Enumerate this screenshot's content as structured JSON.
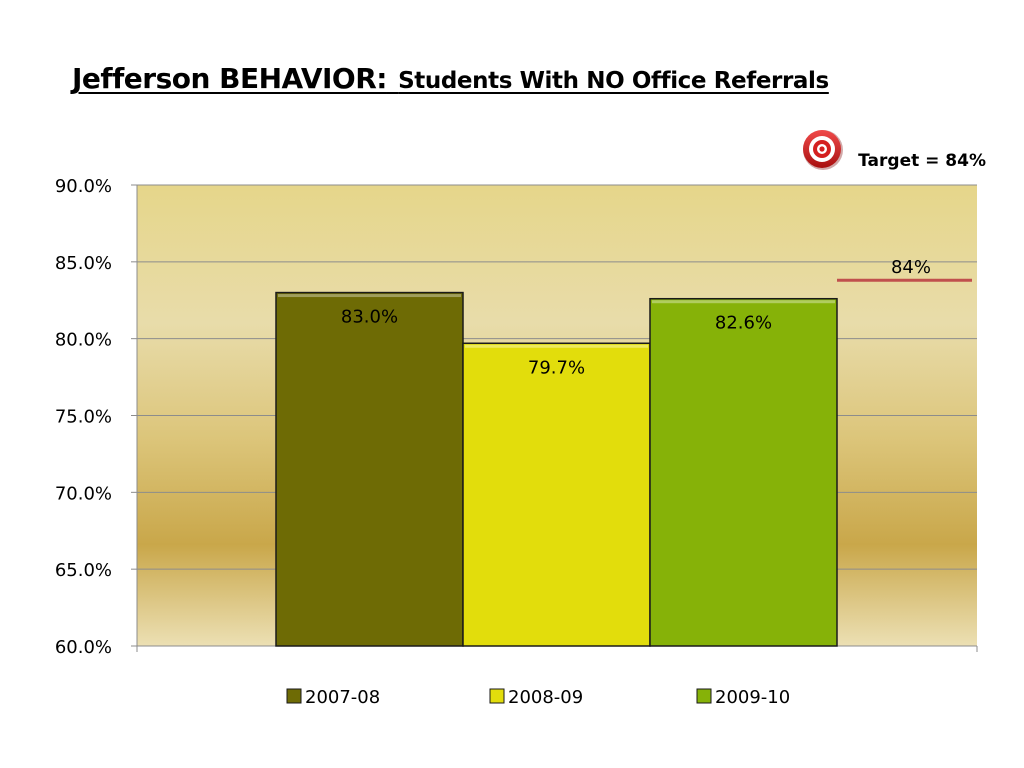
{
  "slide": {
    "title_main": "Jefferson BEHAVIOR:",
    "title_sub": "Students With NO Office Referrals"
  },
  "chart_data": {
    "type": "bar",
    "title": "Jefferson BEHAVIOR: Students With NO Office Referrals",
    "xlabel": "",
    "ylabel": "",
    "ylim": [
      60,
      90
    ],
    "yticks": [
      "90.0%",
      "85.0%",
      "80.0%",
      "75.0%",
      "70.0%",
      "65.0%",
      "60.0%"
    ],
    "grid": true,
    "legend_position": "bottom",
    "series": [
      {
        "name": "2007-08",
        "value": 83.0,
        "label": "83.0%",
        "color": "#6e6b05"
      },
      {
        "name": "2008-09",
        "value": 79.7,
        "label": "79.7%",
        "color": "#e2dd0c"
      },
      {
        "name": "2009-10",
        "value": 82.6,
        "label": "82.6%",
        "color": "#86b208"
      }
    ],
    "target": {
      "value": 84,
      "line_label": "84%",
      "legend_text": "Target = 84%",
      "color": "#c0504d",
      "icon": "target-bullseye-icon"
    }
  }
}
